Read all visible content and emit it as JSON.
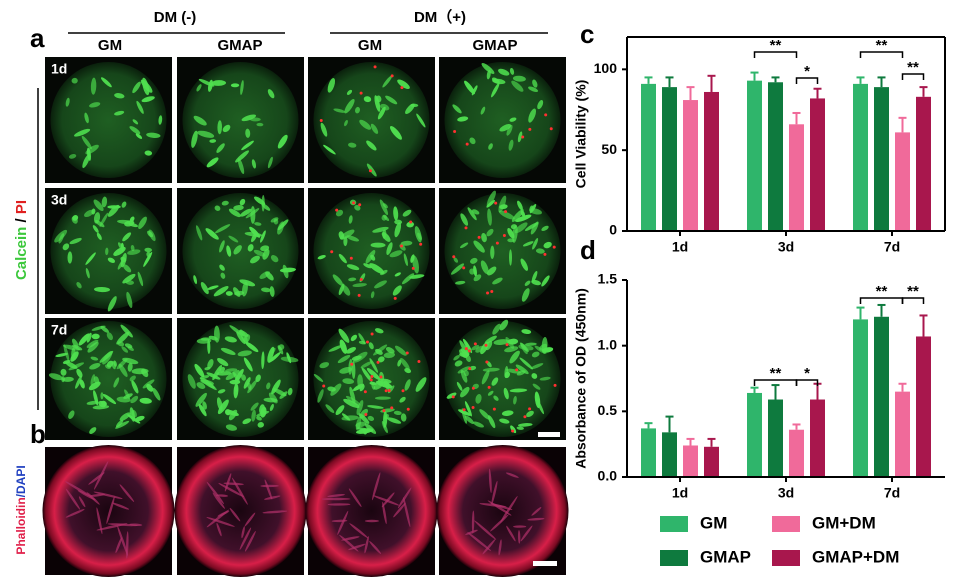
{
  "figure": {
    "panel_labels": [
      "a",
      "b",
      "c",
      "d"
    ],
    "dm_headers": [
      "DM  (-)",
      "DM（+)"
    ],
    "column_labels": [
      "GM",
      "GMAP",
      "GM",
      "GMAP"
    ],
    "row_labels": [
      "1d",
      "3d",
      "7d"
    ],
    "stain_a": [
      "Calcein",
      " / ",
      "PI"
    ],
    "stain_b": [
      "Phalloidin",
      "/",
      "DAPI"
    ]
  },
  "chart_data": [
    {
      "type": "bar",
      "y_label": "Cell Viability (%)",
      "categories": [
        "1d",
        "3d",
        "7d"
      ],
      "ylim": [
        0,
        120
      ],
      "yticks": [
        0,
        50,
        100
      ],
      "series": [
        {
          "color": "#2fb56b",
          "values": [
            91,
            93,
            91
          ],
          "errors": [
            4,
            5,
            4
          ]
        },
        {
          "color": "#0e7a3e",
          "values": [
            89,
            92,
            89
          ],
          "errors": [
            6,
            3,
            6
          ]
        },
        {
          "color": "#f06a9a",
          "values": [
            81,
            66,
            61
          ],
          "errors": [
            8,
            7,
            9
          ]
        },
        {
          "color": "#a8174d",
          "values": [
            86,
            82,
            83
          ],
          "errors": [
            10,
            6,
            6
          ]
        }
      ],
      "annotations": [
        "**",
        "*",
        "**",
        "**"
      ]
    },
    {
      "type": "bar",
      "y_label": "Absorbance of OD (450nm)",
      "categories": [
        "1d",
        "3d",
        "7d"
      ],
      "ylim": [
        0,
        1.5
      ],
      "yticks": [
        {
          "value": 0,
          "label": "0.0"
        },
        0.5,
        {
          "value": 1,
          "label": "1.0"
        },
        1.5
      ],
      "series": [
        {
          "name": "GM",
          "color": "#2fb56b",
          "values": [
            0.37,
            0.64,
            1.2
          ],
          "errors": [
            0.04,
            0.04,
            0.09
          ]
        },
        {
          "name": "GMAP",
          "color": "#0e7a3e",
          "values": [
            0.34,
            0.59,
            1.22
          ],
          "errors": [
            0.12,
            0.11,
            0.09
          ]
        },
        {
          "name": "GM+DM",
          "color": "#f06a9a",
          "values": [
            0.24,
            0.36,
            0.65
          ],
          "errors": [
            0.05,
            0.04,
            0.06
          ]
        },
        {
          "name": "GMAP+DM",
          "color": "#a8174d",
          "values": [
            0.23,
            0.59,
            1.07
          ],
          "errors": [
            0.06,
            0.12,
            0.16
          ]
        }
      ],
      "annotations": [
        "**",
        "*",
        "**",
        "**"
      ]
    }
  ]
}
